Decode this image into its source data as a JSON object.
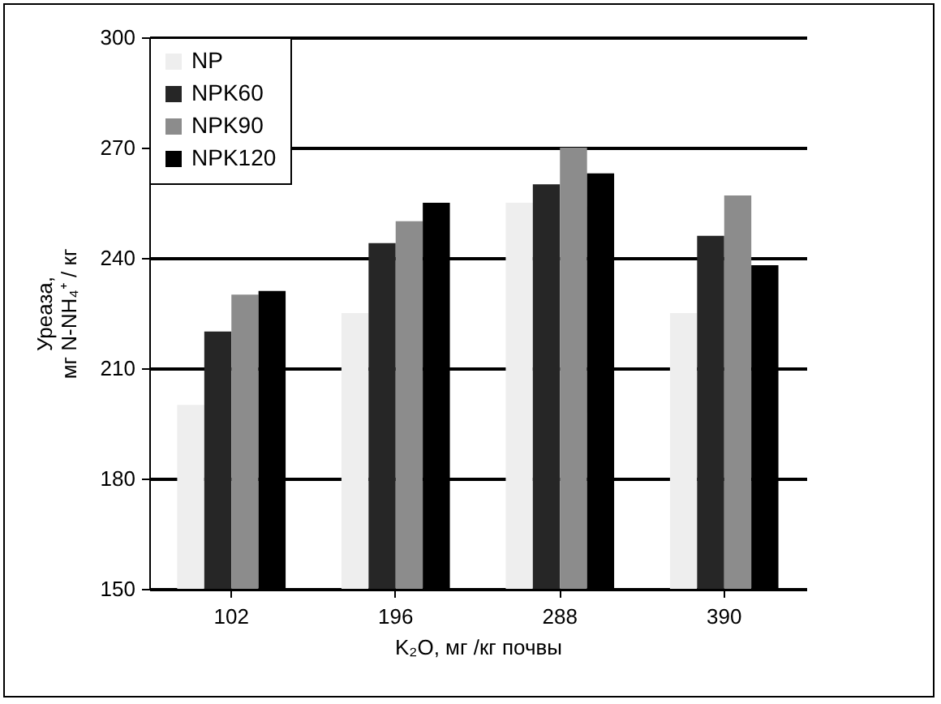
{
  "chart_data": {
    "type": "bar",
    "xlabel": "K₂O, мг /кг почвы",
    "ylabel": "Уреаза,\nмг N-NH₄⁺ / кг",
    "categories": [
      "102",
      "196",
      "288",
      "390"
    ],
    "series": [
      {
        "name": "NP",
        "color": "#eeeeee",
        "values": [
          200,
          225,
          255,
          225
        ]
      },
      {
        "name": "NPK60",
        "color": "#262626",
        "values": [
          220,
          244,
          260,
          246
        ]
      },
      {
        "name": "NPK90",
        "color": "#8c8c8c",
        "values": [
          230,
          250,
          270,
          257
        ]
      },
      {
        "name": "NPK120",
        "color": "#000000",
        "values": [
          231,
          255,
          263,
          238
        ]
      }
    ],
    "ylim": [
      150,
      300
    ],
    "yticks": [
      150,
      180,
      210,
      240,
      270,
      300
    ],
    "grid": "y",
    "legend": "top left"
  }
}
